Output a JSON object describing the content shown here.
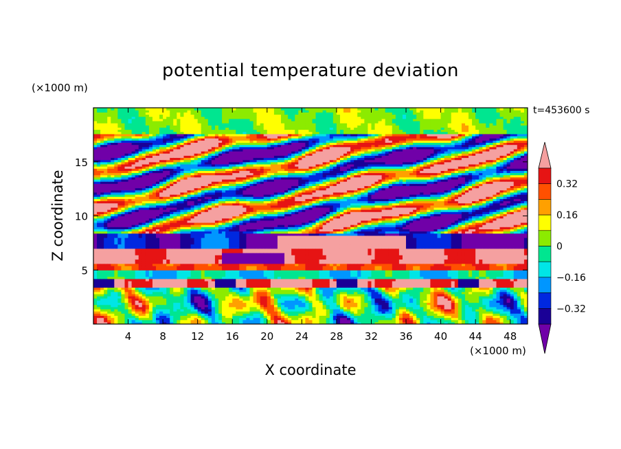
{
  "chart_data": {
    "type": "heatmap",
    "title": "potential temperature deviation",
    "xlabel": "X coordinate",
    "ylabel": "Z coordinate",
    "x_unit": "(×1000 m)",
    "y_unit": "(×1000 m)",
    "time_label": "t=453600 s",
    "xlim": [
      0,
      50
    ],
    "ylim": [
      0,
      20
    ],
    "x_ticks": [
      4,
      8,
      12,
      16,
      20,
      24,
      28,
      32,
      36,
      40,
      44,
      48
    ],
    "y_ticks": [
      5,
      10,
      15
    ],
    "colorbar": {
      "levels": [
        -0.4,
        -0.32,
        -0.24,
        -0.16,
        -0.08,
        0,
        0.08,
        0.16,
        0.24,
        0.32,
        0.4
      ],
      "labeled_levels": [
        0.32,
        0.16,
        0,
        -0.16,
        -0.32
      ],
      "colors": [
        "#7000A8",
        "#1A0096",
        "#0028E0",
        "#0096FF",
        "#00E6E6",
        "#00E690",
        "#8CEB00",
        "#FFFF00",
        "#FFA000",
        "#FF5000",
        "#E61414",
        "#F5A0A0"
      ],
      "extend": "both"
    },
    "field_bands": [
      {
        "z": [
          0.0,
          3.5
        ],
        "pattern": "convective plumes, mixed"
      },
      {
        "z": [
          3.5,
          4.3
        ],
        "pattern": "warm pink layer"
      },
      {
        "z": [
          4.3,
          5.0
        ],
        "pattern": "cool purple/blue layer"
      },
      {
        "z": [
          5.0,
          5.7
        ],
        "pattern": "warm orange/red layer"
      },
      {
        "z": [
          5.7,
          7.0
        ],
        "pattern": "warm pink layer"
      },
      {
        "z": [
          7.0,
          8.5
        ],
        "pattern": "purple/blue blobs"
      },
      {
        "z": [
          8.5,
          17.5
        ],
        "pattern": "alternating warm/cool waves"
      },
      {
        "z": [
          17.5,
          20.0
        ],
        "pattern": "neutral green/cyan"
      }
    ]
  }
}
